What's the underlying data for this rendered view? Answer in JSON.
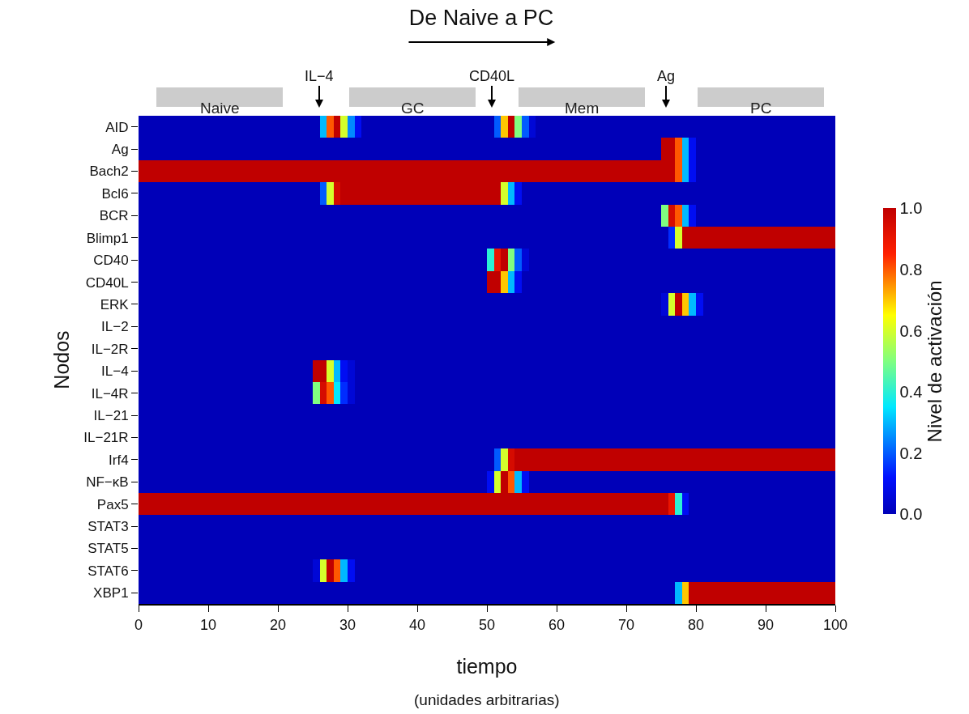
{
  "chart_data": {
    "type": "heatmap",
    "title": "De Naive a PC",
    "xlabel": "tiempo",
    "ylabel": "Nodos",
    "clabel": "Nivel de activación",
    "x": [
      0.5,
      1.5,
      2.5,
      3.5,
      4.5,
      5.5,
      6.5,
      7.5,
      8.5,
      9.5,
      10.5,
      11.5,
      12.5,
      13.5,
      14.5,
      15.5,
      16.5,
      17.5,
      18.5,
      19.5,
      20.5,
      21.5,
      22.5,
      23.5,
      24.5,
      25.5,
      26.5,
      27.5,
      28.5,
      29.5,
      30.5,
      31.5,
      32.5,
      33.5,
      34.5,
      35.5,
      36.5,
      37.5,
      38.5,
      39.5,
      40.5,
      41.5,
      42.5,
      43.5,
      44.5,
      45.5,
      46.5,
      47.5,
      48.5,
      49.5,
      50.5,
      51.5,
      52.5,
      53.5,
      54.5,
      55.5,
      56.5,
      57.5,
      58.5,
      59.5,
      60.5,
      61.5,
      62.5,
      63.5,
      64.5,
      65.5,
      66.5,
      67.5,
      68.5,
      69.5,
      70.5,
      71.5,
      72.5,
      73.5,
      74.5,
      75.5,
      76.5,
      77.5,
      78.5,
      79.5,
      80.5,
      81.5,
      82.5,
      83.5,
      84.5,
      85.5,
      86.5,
      87.5,
      88.5,
      89.5,
      90.5,
      91.5,
      92.5,
      93.5,
      94.5,
      95.5,
      96.5,
      97.5,
      98.5,
      99.5
    ],
    "y_categories": [
      "AID",
      "Ag",
      "Bach2",
      "Bcl6",
      "BCR",
      "Blimp1",
      "CD40",
      "CD40L",
      "ERK",
      "IL−2",
      "IL−2R",
      "IL−4",
      "IL−4R",
      "IL−21",
      "IL−21R",
      "Irf4",
      "NF−κB",
      "Pax5",
      "STAT3",
      "STAT5",
      "STAT6",
      "XBP1"
    ],
    "cells": [
      [
        0,
        0,
        0,
        0,
        0,
        0,
        0,
        0,
        0,
        0,
        0,
        0,
        0,
        0,
        0,
        0,
        0,
        0,
        0,
        0,
        0,
        0,
        0,
        0,
        0,
        0,
        0.3,
        0.8,
        1,
        0.6,
        0.25,
        0.1,
        0,
        0,
        0,
        0,
        0,
        0,
        0,
        0,
        0,
        0,
        0,
        0,
        0,
        0,
        0,
        0,
        0,
        0,
        0,
        0.2,
        0.7,
        1,
        0.5,
        0.2,
        0.05,
        0,
        0,
        0,
        0,
        0,
        0,
        0,
        0,
        0,
        0,
        0,
        0,
        0,
        0,
        0,
        0,
        0,
        0,
        0,
        0,
        0,
        0,
        0,
        0,
        0,
        0,
        0,
        0,
        0,
        0,
        0,
        0,
        0,
        0,
        0,
        0,
        0,
        0,
        0,
        0,
        0,
        0,
        0
      ],
      [
        0,
        0,
        0,
        0,
        0,
        0,
        0,
        0,
        0,
        0,
        0,
        0,
        0,
        0,
        0,
        0,
        0,
        0,
        0,
        0,
        0,
        0,
        0,
        0,
        0,
        0,
        0,
        0,
        0,
        0,
        0,
        0,
        0,
        0,
        0,
        0,
        0,
        0,
        0,
        0,
        0,
        0,
        0,
        0,
        0,
        0,
        0,
        0,
        0,
        0,
        0,
        0,
        0,
        0,
        0,
        0,
        0,
        0,
        0,
        0,
        0,
        0,
        0,
        0,
        0,
        0,
        0,
        0,
        0,
        0,
        0,
        0,
        0,
        0,
        0,
        1,
        1,
        0.8,
        0.3,
        0.1,
        0,
        0,
        0,
        0,
        0,
        0,
        0,
        0,
        0,
        0,
        0,
        0,
        0,
        0,
        0,
        0,
        0,
        0,
        0,
        0
      ],
      [
        1,
        1,
        1,
        1,
        1,
        1,
        1,
        1,
        1,
        1,
        1,
        1,
        1,
        1,
        1,
        1,
        1,
        1,
        1,
        1,
        1,
        1,
        1,
        1,
        1,
        1,
        1,
        1,
        1,
        1,
        1,
        1,
        1,
        1,
        1,
        1,
        1,
        1,
        1,
        1,
        1,
        1,
        1,
        1,
        1,
        1,
        1,
        1,
        1,
        1,
        1,
        1,
        1,
        1,
        1,
        1,
        1,
        1,
        1,
        1,
        1,
        1,
        1,
        1,
        1,
        1,
        1,
        1,
        1,
        1,
        1,
        1,
        1,
        1,
        1,
        1,
        1,
        0.8,
        0.3,
        0.1,
        0,
        0,
        0,
        0,
        0,
        0,
        0,
        0,
        0,
        0,
        0,
        0,
        0,
        0,
        0,
        0,
        0,
        0,
        0,
        0
      ],
      [
        0,
        0,
        0,
        0,
        0,
        0,
        0,
        0,
        0,
        0,
        0,
        0,
        0,
        0,
        0,
        0,
        0,
        0,
        0,
        0,
        0,
        0,
        0,
        0,
        0,
        0,
        0.2,
        0.6,
        0.95,
        1,
        1,
        1,
        1,
        1,
        1,
        1,
        1,
        1,
        1,
        1,
        1,
        1,
        1,
        1,
        1,
        1,
        1,
        1,
        1,
        1,
        1,
        1,
        0.6,
        0.3,
        0.1,
        0,
        0,
        0,
        0,
        0,
        0,
        0,
        0,
        0,
        0,
        0,
        0,
        0,
        0,
        0,
        0,
        0,
        0,
        0,
        0,
        0,
        0,
        0,
        0,
        0,
        0,
        0,
        0,
        0,
        0,
        0,
        0,
        0,
        0,
        0,
        0,
        0,
        0,
        0,
        0,
        0,
        0,
        0,
        0,
        0
      ],
      [
        0,
        0,
        0,
        0,
        0,
        0,
        0,
        0,
        0,
        0,
        0,
        0,
        0,
        0,
        0,
        0,
        0,
        0,
        0,
        0,
        0,
        0,
        0,
        0,
        0,
        0,
        0,
        0,
        0,
        0,
        0,
        0,
        0,
        0,
        0,
        0,
        0,
        0,
        0,
        0,
        0,
        0,
        0,
        0,
        0,
        0,
        0,
        0,
        0,
        0,
        0,
        0,
        0,
        0,
        0,
        0,
        0,
        0,
        0,
        0,
        0,
        0,
        0,
        0,
        0,
        0,
        0,
        0,
        0,
        0,
        0,
        0,
        0,
        0,
        0,
        0.5,
        0.95,
        0.8,
        0.3,
        0.1,
        0,
        0,
        0,
        0,
        0,
        0,
        0,
        0,
        0,
        0,
        0,
        0,
        0,
        0,
        0,
        0,
        0,
        0,
        0,
        0
      ],
      [
        0,
        0,
        0,
        0,
        0,
        0,
        0,
        0,
        0,
        0,
        0,
        0,
        0,
        0,
        0,
        0,
        0,
        0,
        0,
        0,
        0,
        0,
        0,
        0,
        0,
        0,
        0,
        0,
        0,
        0,
        0,
        0,
        0,
        0,
        0,
        0,
        0,
        0,
        0,
        0,
        0,
        0,
        0,
        0,
        0,
        0,
        0,
        0,
        0,
        0,
        0,
        0,
        0,
        0,
        0,
        0,
        0,
        0,
        0,
        0,
        0,
        0,
        0,
        0,
        0,
        0,
        0,
        0,
        0,
        0,
        0,
        0,
        0,
        0,
        0,
        0,
        0.15,
        0.6,
        1,
        1,
        1,
        1,
        1,
        1,
        1,
        1,
        1,
        1,
        1,
        1,
        1,
        1,
        1,
        1,
        1,
        1,
        1,
        1,
        1,
        1
      ],
      [
        0,
        0,
        0,
        0,
        0,
        0,
        0,
        0,
        0,
        0,
        0,
        0,
        0,
        0,
        0,
        0,
        0,
        0,
        0,
        0,
        0,
        0,
        0,
        0,
        0,
        0,
        0,
        0,
        0,
        0,
        0,
        0,
        0,
        0,
        0,
        0,
        0,
        0,
        0,
        0,
        0,
        0,
        0,
        0,
        0,
        0,
        0,
        0,
        0,
        0,
        0.4,
        0.9,
        1,
        0.5,
        0.2,
        0.05,
        0,
        0,
        0,
        0,
        0,
        0,
        0,
        0,
        0,
        0,
        0,
        0,
        0,
        0,
        0,
        0,
        0,
        0,
        0,
        0,
        0,
        0,
        0,
        0,
        0,
        0,
        0,
        0,
        0,
        0,
        0,
        0,
        0,
        0,
        0,
        0,
        0,
        0,
        0,
        0,
        0,
        0,
        0,
        0
      ],
      [
        0,
        0,
        0,
        0,
        0,
        0,
        0,
        0,
        0,
        0,
        0,
        0,
        0,
        0,
        0,
        0,
        0,
        0,
        0,
        0,
        0,
        0,
        0,
        0,
        0,
        0,
        0,
        0,
        0,
        0,
        0,
        0,
        0,
        0,
        0,
        0,
        0,
        0,
        0,
        0,
        0,
        0,
        0,
        0,
        0,
        0,
        0,
        0,
        0,
        0,
        1,
        1,
        0.7,
        0.3,
        0.1,
        0,
        0,
        0,
        0,
        0,
        0,
        0,
        0,
        0,
        0,
        0,
        0,
        0,
        0,
        0,
        0,
        0,
        0,
        0,
        0,
        0,
        0,
        0,
        0,
        0,
        0,
        0,
        0,
        0,
        0,
        0,
        0,
        0,
        0,
        0,
        0,
        0,
        0,
        0,
        0,
        0,
        0,
        0,
        0,
        0
      ],
      [
        0,
        0,
        0,
        0,
        0,
        0,
        0,
        0,
        0,
        0,
        0,
        0,
        0,
        0,
        0,
        0,
        0,
        0,
        0,
        0,
        0,
        0,
        0,
        0,
        0,
        0,
        0,
        0,
        0,
        0,
        0,
        0,
        0,
        0,
        0,
        0,
        0,
        0,
        0,
        0,
        0,
        0,
        0,
        0,
        0,
        0,
        0,
        0,
        0,
        0,
        0,
        0,
        0,
        0,
        0,
        0,
        0,
        0,
        0,
        0,
        0,
        0,
        0,
        0,
        0,
        0,
        0,
        0,
        0,
        0,
        0,
        0,
        0,
        0,
        0,
        0.05,
        0.6,
        1,
        0.7,
        0.3,
        0.1,
        0,
        0,
        0,
        0,
        0,
        0,
        0,
        0,
        0,
        0,
        0,
        0,
        0,
        0,
        0,
        0,
        0,
        0,
        0
      ],
      [
        0,
        0,
        0,
        0,
        0,
        0,
        0,
        0,
        0,
        0,
        0,
        0,
        0,
        0,
        0,
        0,
        0,
        0,
        0,
        0,
        0,
        0,
        0,
        0,
        0,
        0,
        0,
        0,
        0,
        0,
        0,
        0,
        0,
        0,
        0,
        0,
        0,
        0,
        0,
        0,
        0,
        0,
        0,
        0,
        0,
        0,
        0,
        0,
        0,
        0,
        0,
        0,
        0,
        0,
        0,
        0,
        0,
        0,
        0,
        0,
        0,
        0,
        0,
        0,
        0,
        0,
        0,
        0,
        0,
        0,
        0,
        0,
        0,
        0,
        0,
        0,
        0,
        0,
        0,
        0,
        0,
        0,
        0,
        0,
        0,
        0,
        0,
        0,
        0,
        0,
        0,
        0,
        0,
        0,
        0,
        0,
        0,
        0,
        0,
        0
      ],
      [
        0,
        0,
        0,
        0,
        0,
        0,
        0,
        0,
        0,
        0,
        0,
        0,
        0,
        0,
        0,
        0,
        0,
        0,
        0,
        0,
        0,
        0,
        0,
        0,
        0,
        0,
        0,
        0,
        0,
        0,
        0,
        0,
        0,
        0,
        0,
        0,
        0,
        0,
        0,
        0,
        0,
        0,
        0,
        0,
        0,
        0,
        0,
        0,
        0,
        0,
        0,
        0,
        0,
        0,
        0,
        0,
        0,
        0,
        0,
        0,
        0,
        0,
        0,
        0,
        0,
        0,
        0,
        0,
        0,
        0,
        0,
        0,
        0,
        0,
        0,
        0,
        0,
        0,
        0,
        0,
        0,
        0,
        0,
        0,
        0,
        0,
        0,
        0,
        0,
        0,
        0,
        0,
        0,
        0,
        0,
        0,
        0,
        0,
        0,
        0
      ],
      [
        0,
        0,
        0,
        0,
        0,
        0,
        0,
        0,
        0,
        0,
        0,
        0,
        0,
        0,
        0,
        0,
        0,
        0,
        0,
        0,
        0,
        0,
        0,
        0,
        0,
        1,
        1,
        0.6,
        0.3,
        0.1,
        0.05,
        0,
        0,
        0,
        0,
        0,
        0,
        0,
        0,
        0,
        0,
        0,
        0,
        0,
        0,
        0,
        0,
        0,
        0,
        0,
        0,
        0,
        0,
        0,
        0,
        0,
        0,
        0,
        0,
        0,
        0,
        0,
        0,
        0,
        0,
        0,
        0,
        0,
        0,
        0,
        0,
        0,
        0,
        0,
        0,
        0,
        0,
        0,
        0,
        0,
        0,
        0,
        0,
        0,
        0,
        0,
        0,
        0,
        0,
        0,
        0,
        0,
        0,
        0,
        0,
        0,
        0,
        0,
        0,
        0
      ],
      [
        0,
        0,
        0,
        0,
        0,
        0,
        0,
        0,
        0,
        0,
        0,
        0,
        0,
        0,
        0,
        0,
        0,
        0,
        0,
        0,
        0,
        0,
        0,
        0,
        0,
        0.5,
        0.95,
        0.8,
        0.35,
        0.15,
        0.05,
        0,
        0,
        0,
        0,
        0,
        0,
        0,
        0,
        0,
        0,
        0,
        0,
        0,
        0,
        0,
        0,
        0,
        0,
        0,
        0,
        0,
        0,
        0,
        0,
        0,
        0,
        0,
        0,
        0,
        0,
        0,
        0,
        0,
        0,
        0,
        0,
        0,
        0,
        0,
        0,
        0,
        0,
        0,
        0,
        0,
        0,
        0,
        0,
        0,
        0,
        0,
        0,
        0,
        0,
        0,
        0,
        0,
        0,
        0,
        0,
        0,
        0,
        0,
        0,
        0,
        0,
        0,
        0,
        0
      ],
      [
        0,
        0,
        0,
        0,
        0,
        0,
        0,
        0,
        0,
        0,
        0,
        0,
        0,
        0,
        0,
        0,
        0,
        0,
        0,
        0,
        0,
        0,
        0,
        0,
        0,
        0,
        0,
        0,
        0,
        0,
        0,
        0,
        0,
        0,
        0,
        0,
        0,
        0,
        0,
        0,
        0,
        0,
        0,
        0,
        0,
        0,
        0,
        0,
        0,
        0,
        0,
        0,
        0,
        0,
        0,
        0,
        0,
        0,
        0,
        0,
        0,
        0,
        0,
        0,
        0,
        0,
        0,
        0,
        0,
        0,
        0,
        0,
        0,
        0,
        0,
        0,
        0,
        0,
        0,
        0,
        0,
        0,
        0,
        0,
        0,
        0,
        0,
        0,
        0,
        0,
        0,
        0,
        0,
        0,
        0,
        0,
        0,
        0,
        0,
        0
      ],
      [
        0,
        0,
        0,
        0,
        0,
        0,
        0,
        0,
        0,
        0,
        0,
        0,
        0,
        0,
        0,
        0,
        0,
        0,
        0,
        0,
        0,
        0,
        0,
        0,
        0,
        0,
        0,
        0,
        0,
        0,
        0,
        0,
        0,
        0,
        0,
        0,
        0,
        0,
        0,
        0,
        0,
        0,
        0,
        0,
        0,
        0,
        0,
        0,
        0,
        0,
        0,
        0,
        0,
        0,
        0,
        0,
        0,
        0,
        0,
        0,
        0,
        0,
        0,
        0,
        0,
        0,
        0,
        0,
        0,
        0,
        0,
        0,
        0,
        0,
        0,
        0,
        0,
        0,
        0,
        0,
        0,
        0,
        0,
        0,
        0,
        0,
        0,
        0,
        0,
        0,
        0,
        0,
        0,
        0,
        0,
        0,
        0,
        0,
        0,
        0
      ],
      [
        0,
        0,
        0,
        0,
        0,
        0,
        0,
        0,
        0,
        0,
        0,
        0,
        0,
        0,
        0,
        0,
        0,
        0,
        0,
        0,
        0,
        0,
        0,
        0,
        0,
        0,
        0,
        0,
        0,
        0,
        0,
        0,
        0,
        0,
        0,
        0,
        0,
        0,
        0,
        0,
        0,
        0,
        0,
        0,
        0,
        0,
        0,
        0,
        0,
        0,
        0,
        0.2,
        0.6,
        0.95,
        1,
        1,
        1,
        1,
        1,
        1,
        1,
        1,
        1,
        1,
        1,
        1,
        1,
        1,
        1,
        1,
        1,
        1,
        1,
        1,
        1,
        1,
        1,
        1,
        1,
        1,
        1,
        1,
        1,
        1,
        1,
        1,
        1,
        1,
        1,
        1,
        1,
        1,
        1,
        1,
        1,
        1,
        1,
        1,
        1,
        1
      ],
      [
        0,
        0,
        0,
        0,
        0,
        0,
        0,
        0,
        0,
        0,
        0,
        0,
        0,
        0,
        0,
        0,
        0,
        0,
        0,
        0,
        0,
        0,
        0,
        0,
        0,
        0,
        0,
        0,
        0,
        0,
        0,
        0,
        0,
        0,
        0,
        0,
        0,
        0,
        0,
        0,
        0,
        0,
        0,
        0,
        0,
        0,
        0,
        0,
        0,
        0,
        0.1,
        0.6,
        1,
        0.8,
        0.3,
        0.1,
        0,
        0,
        0,
        0,
        0,
        0,
        0,
        0,
        0,
        0,
        0,
        0,
        0,
        0,
        0,
        0,
        0,
        0,
        0,
        0,
        0,
        0,
        0,
        0,
        0,
        0,
        0,
        0,
        0,
        0,
        0,
        0,
        0,
        0,
        0,
        0,
        0,
        0,
        0,
        0,
        0,
        0,
        0,
        0
      ],
      [
        1,
        1,
        1,
        1,
        1,
        1,
        1,
        1,
        1,
        1,
        1,
        1,
        1,
        1,
        1,
        1,
        1,
        1,
        1,
        1,
        1,
        1,
        1,
        1,
        1,
        1,
        1,
        1,
        1,
        1,
        1,
        1,
        1,
        1,
        1,
        1,
        1,
        1,
        1,
        1,
        1,
        1,
        1,
        1,
        1,
        1,
        1,
        1,
        1,
        1,
        1,
        1,
        1,
        1,
        1,
        1,
        1,
        1,
        1,
        1,
        1,
        1,
        1,
        1,
        1,
        1,
        1,
        1,
        1,
        1,
        1,
        1,
        1,
        1,
        1,
        1,
        0.9,
        0.4,
        0.1,
        0,
        0,
        0,
        0,
        0,
        0,
        0,
        0,
        0,
        0,
        0,
        0,
        0,
        0,
        0,
        0,
        0,
        0,
        0,
        0,
        0
      ],
      [
        0,
        0,
        0,
        0,
        0,
        0,
        0,
        0,
        0,
        0,
        0,
        0,
        0,
        0,
        0,
        0,
        0,
        0,
        0,
        0,
        0,
        0,
        0,
        0,
        0,
        0,
        0,
        0,
        0,
        0,
        0,
        0,
        0,
        0,
        0,
        0,
        0,
        0,
        0,
        0,
        0,
        0,
        0,
        0,
        0,
        0,
        0,
        0,
        0,
        0,
        0,
        0,
        0,
        0,
        0,
        0,
        0,
        0,
        0,
        0,
        0,
        0,
        0,
        0,
        0,
        0,
        0,
        0,
        0,
        0,
        0,
        0,
        0,
        0,
        0,
        0,
        0,
        0,
        0,
        0,
        0,
        0,
        0,
        0,
        0,
        0,
        0,
        0,
        0,
        0,
        0,
        0,
        0,
        0,
        0,
        0,
        0,
        0,
        0,
        0
      ],
      [
        0,
        0,
        0,
        0,
        0,
        0,
        0,
        0,
        0,
        0,
        0,
        0,
        0,
        0,
        0,
        0,
        0,
        0,
        0,
        0,
        0,
        0,
        0,
        0,
        0,
        0,
        0,
        0,
        0,
        0,
        0,
        0,
        0,
        0,
        0,
        0,
        0,
        0,
        0,
        0,
        0,
        0,
        0,
        0,
        0,
        0,
        0,
        0,
        0,
        0,
        0,
        0,
        0,
        0,
        0,
        0,
        0,
        0,
        0,
        0,
        0,
        0,
        0,
        0,
        0,
        0,
        0,
        0,
        0,
        0,
        0,
        0,
        0,
        0,
        0,
        0,
        0,
        0,
        0,
        0,
        0,
        0,
        0,
        0,
        0,
        0,
        0,
        0,
        0,
        0,
        0,
        0,
        0,
        0,
        0,
        0,
        0,
        0,
        0,
        0
      ],
      [
        0,
        0,
        0,
        0,
        0,
        0,
        0,
        0,
        0,
        0,
        0,
        0,
        0,
        0,
        0,
        0,
        0,
        0,
        0,
        0,
        0,
        0,
        0,
        0,
        0,
        0.05,
        0.6,
        1,
        0.8,
        0.3,
        0.1,
        0,
        0,
        0,
        0,
        0,
        0,
        0,
        0,
        0,
        0,
        0,
        0,
        0,
        0,
        0,
        0,
        0,
        0,
        0,
        0,
        0,
        0,
        0,
        0,
        0,
        0,
        0,
        0,
        0,
        0,
        0,
        0,
        0,
        0,
        0,
        0,
        0,
        0,
        0,
        0,
        0,
        0,
        0,
        0,
        0,
        0,
        0,
        0,
        0,
        0,
        0,
        0,
        0,
        0,
        0,
        0,
        0,
        0,
        0,
        0,
        0,
        0,
        0,
        0,
        0,
        0,
        0,
        0,
        0
      ],
      [
        0,
        0,
        0,
        0,
        0,
        0,
        0,
        0,
        0,
        0,
        0,
        0,
        0,
        0,
        0,
        0,
        0,
        0,
        0,
        0,
        0,
        0,
        0,
        0,
        0,
        0,
        0,
        0,
        0,
        0,
        0,
        0,
        0,
        0,
        0,
        0,
        0,
        0,
        0,
        0,
        0,
        0,
        0,
        0,
        0,
        0,
        0,
        0,
        0,
        0,
        0,
        0,
        0,
        0,
        0,
        0,
        0,
        0,
        0,
        0,
        0,
        0,
        0,
        0,
        0,
        0,
        0,
        0,
        0,
        0,
        0,
        0,
        0,
        0,
        0,
        0,
        0,
        0.3,
        0.7,
        1,
        1,
        1,
        1,
        1,
        1,
        1,
        1,
        1,
        1,
        1,
        1,
        1,
        1,
        1,
        1,
        1,
        1,
        1,
        1,
        1
      ]
    ],
    "xlim": [
      0,
      100
    ],
    "xticks": [
      0,
      10,
      20,
      30,
      40,
      50,
      60,
      70,
      80,
      90,
      100
    ],
    "clim": [
      0,
      1
    ],
    "cticks": [
      {
        "value": 0,
        "label": "0.0"
      },
      {
        "value": 0.2,
        "label": "0.2"
      },
      {
        "value": 0.4,
        "label": "0.4"
      },
      {
        "value": 0.6,
        "label": "0.6"
      },
      {
        "value": 0.8,
        "label": "0.8"
      },
      {
        "value": 1,
        "label": "1.0"
      }
    ],
    "annotations": [
      "Naive",
      "IL−4",
      "GC",
      "CD40L",
      "Mem",
      "Ag",
      "PC",
      "(unidades arbitrarias)"
    ]
  }
}
